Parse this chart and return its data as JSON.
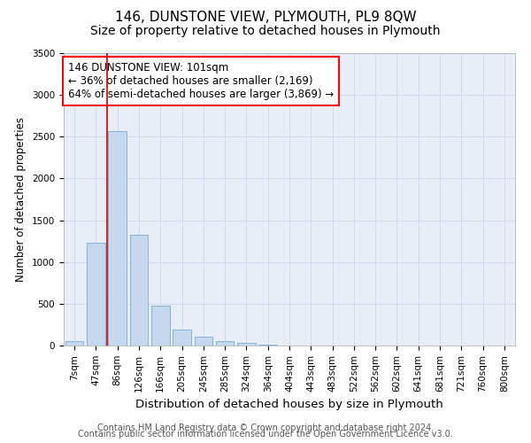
{
  "title": "146, DUNSTONE VIEW, PLYMOUTH, PL9 8QW",
  "subtitle": "Size of property relative to detached houses in Plymouth",
  "xlabel": "Distribution of detached houses by size in Plymouth",
  "ylabel": "Number of detached properties",
  "footer1": "Contains HM Land Registry data © Crown copyright and database right 2024.",
  "footer2": "Contains public sector information licensed under the Open Government Licence v3.0.",
  "categories": [
    "7sqm",
    "47sqm",
    "86sqm",
    "126sqm",
    "166sqm",
    "205sqm",
    "245sqm",
    "285sqm",
    "324sqm",
    "364sqm",
    "404sqm",
    "443sqm",
    "483sqm",
    "522sqm",
    "562sqm",
    "602sqm",
    "641sqm",
    "681sqm",
    "721sqm",
    "760sqm",
    "800sqm"
  ],
  "values": [
    50,
    1230,
    2570,
    1330,
    480,
    195,
    110,
    50,
    30,
    10,
    5,
    2,
    1,
    0,
    0,
    0,
    0,
    0,
    0,
    0,
    0
  ],
  "bar_color": "#c5d8ee",
  "bar_edge_color": "#7aabcf",
  "grid_color": "#c8d8eb",
  "background_color": "#e8eef8",
  "annotation_line1": "146 DUNSTONE VIEW: 101sqm",
  "annotation_line2": "← 36% of detached houses are smaller (2,169)",
  "annotation_line3": "64% of semi-detached houses are larger (3,869) →",
  "vline_bar_index": 2,
  "vline_color": "#cc0000",
  "ylim": [
    0,
    3500
  ],
  "yticks": [
    0,
    500,
    1000,
    1500,
    2000,
    2500,
    3000,
    3500
  ],
  "title_fontsize": 11,
  "subtitle_fontsize": 10,
  "xlabel_fontsize": 9.5,
  "ylabel_fontsize": 8.5,
  "tick_fontsize": 7.5,
  "annot_fontsize": 8.5,
  "footer_fontsize": 7
}
